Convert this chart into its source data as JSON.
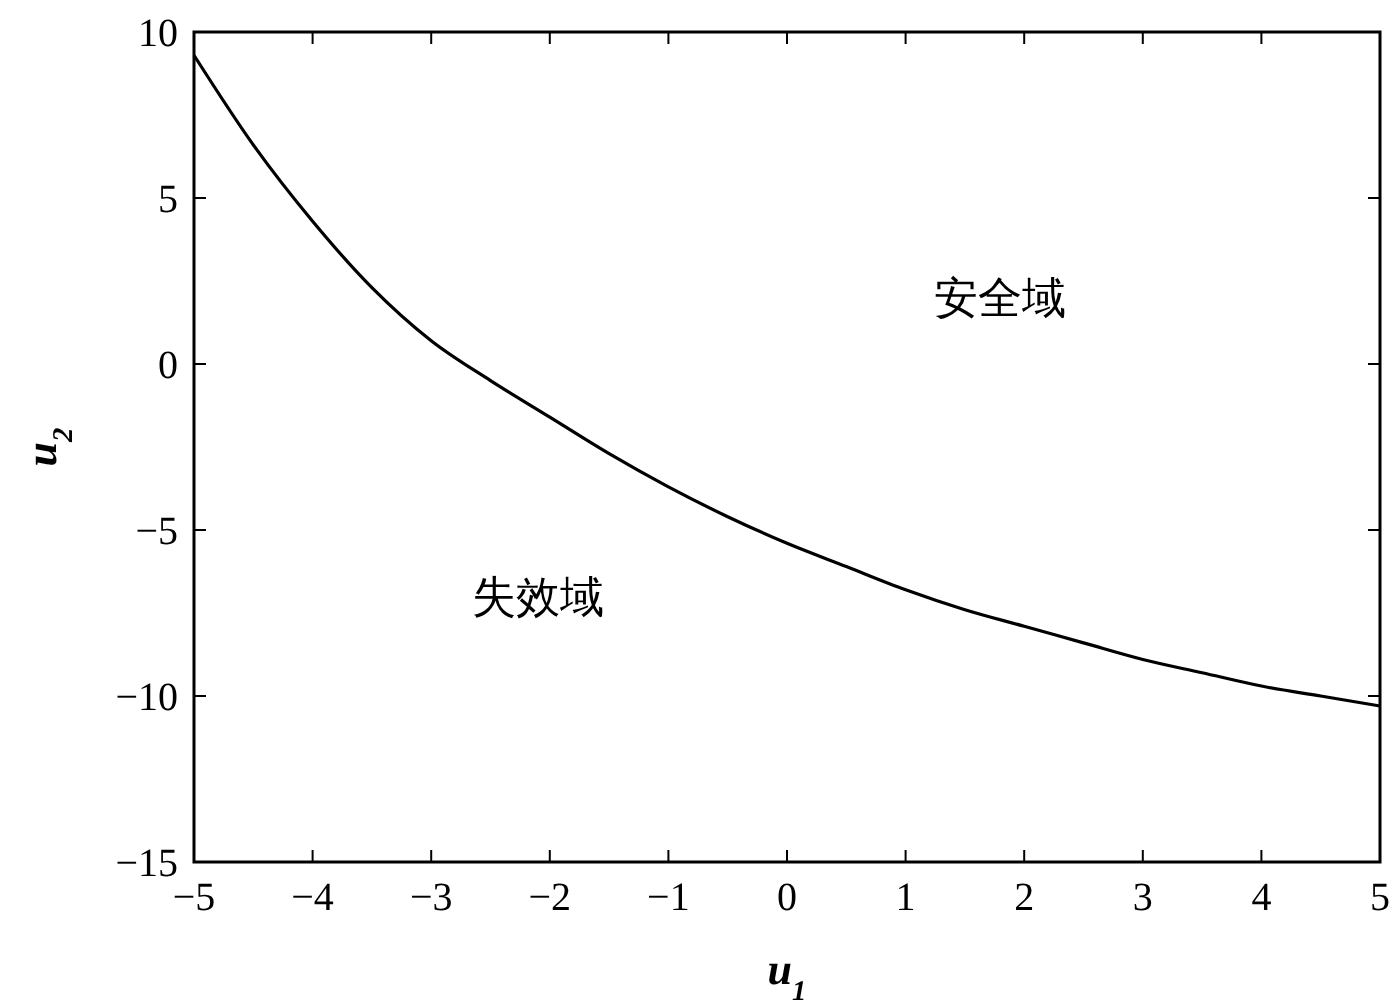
{
  "chart_data": {
    "type": "line",
    "xlabel": "u$_{1}$",
    "ylabel": "u$_{2}$",
    "xlim": [
      -5,
      5
    ],
    "ylim": [
      -15,
      10
    ],
    "xticks": [
      {
        "value": -5,
        "label": "−5"
      },
      {
        "value": -4,
        "label": "−4"
      },
      {
        "value": -3,
        "label": "−3"
      },
      {
        "value": -2,
        "label": "−2"
      },
      {
        "value": -1,
        "label": "−1"
      },
      0,
      1,
      2,
      3,
      4,
      5
    ],
    "yticks": [
      {
        "value": -15,
        "label": "−15"
      },
      {
        "value": -10,
        "label": "−10"
      },
      {
        "value": -5,
        "label": "−5"
      },
      0,
      5,
      10
    ],
    "x": [
      -5,
      -4.5,
      -4,
      -3.5,
      -3,
      -2.5,
      -2,
      -1.5,
      -1,
      -0.5,
      0,
      0.5,
      1,
      1.5,
      2,
      2.5,
      3,
      3.5,
      4,
      4.5,
      5
    ],
    "series": [
      {
        "color": "#000000",
        "values": [
          9.3,
          6.6,
          4.3,
          2.3,
          0.7,
          -0.5,
          -1.6,
          -2.7,
          -3.7,
          -4.6,
          -5.4,
          -6.1,
          -6.8,
          -7.4,
          -7.9,
          -8.4,
          -8.9,
          -9.3,
          -9.7,
          -10.0,
          -10.3
        ]
      }
    ],
    "annotations": [
      "安全域",
      "失效域"
    ],
    "grid": false,
    "marker": "none",
    "line_style": "solid"
  }
}
